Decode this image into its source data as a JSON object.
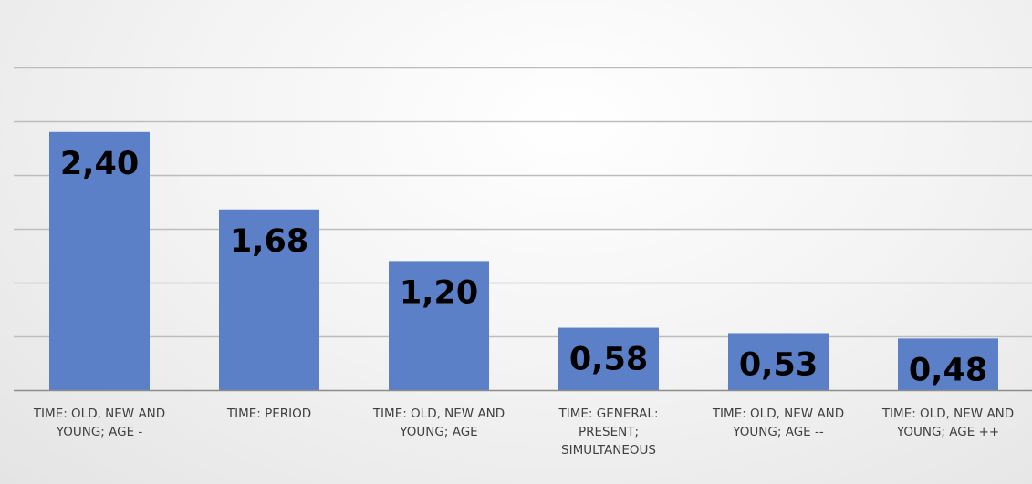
{
  "chart_data": {
    "type": "bar",
    "categories": [
      [
        "TIME: OLD, NEW AND",
        "YOUNG; AGE -"
      ],
      [
        "TIME: PERIOD"
      ],
      [
        "TIME: OLD, NEW AND",
        "YOUNG; AGE"
      ],
      [
        "TIME: GENERAL:",
        "PRESENT;",
        "SIMULTANEOUS"
      ],
      [
        "TIME: OLD, NEW AND",
        "YOUNG; AGE --"
      ],
      [
        "TIME: OLD, NEW AND",
        "YOUNG; AGE ++"
      ]
    ],
    "values": [
      2.4,
      1.68,
      1.2,
      0.58,
      0.53,
      0.48
    ],
    "data_labels": [
      "2,40",
      "1,68",
      "1,20",
      "0,58",
      "0,53",
      "0,48"
    ],
    "title": "",
    "xlabel": "",
    "ylabel": "",
    "ylim": [
      0,
      3.0
    ],
    "grid": true,
    "bar_color": "#5b80c8",
    "grid_color": "#bdbdbd",
    "axis_color": "#8c8c8c"
  }
}
